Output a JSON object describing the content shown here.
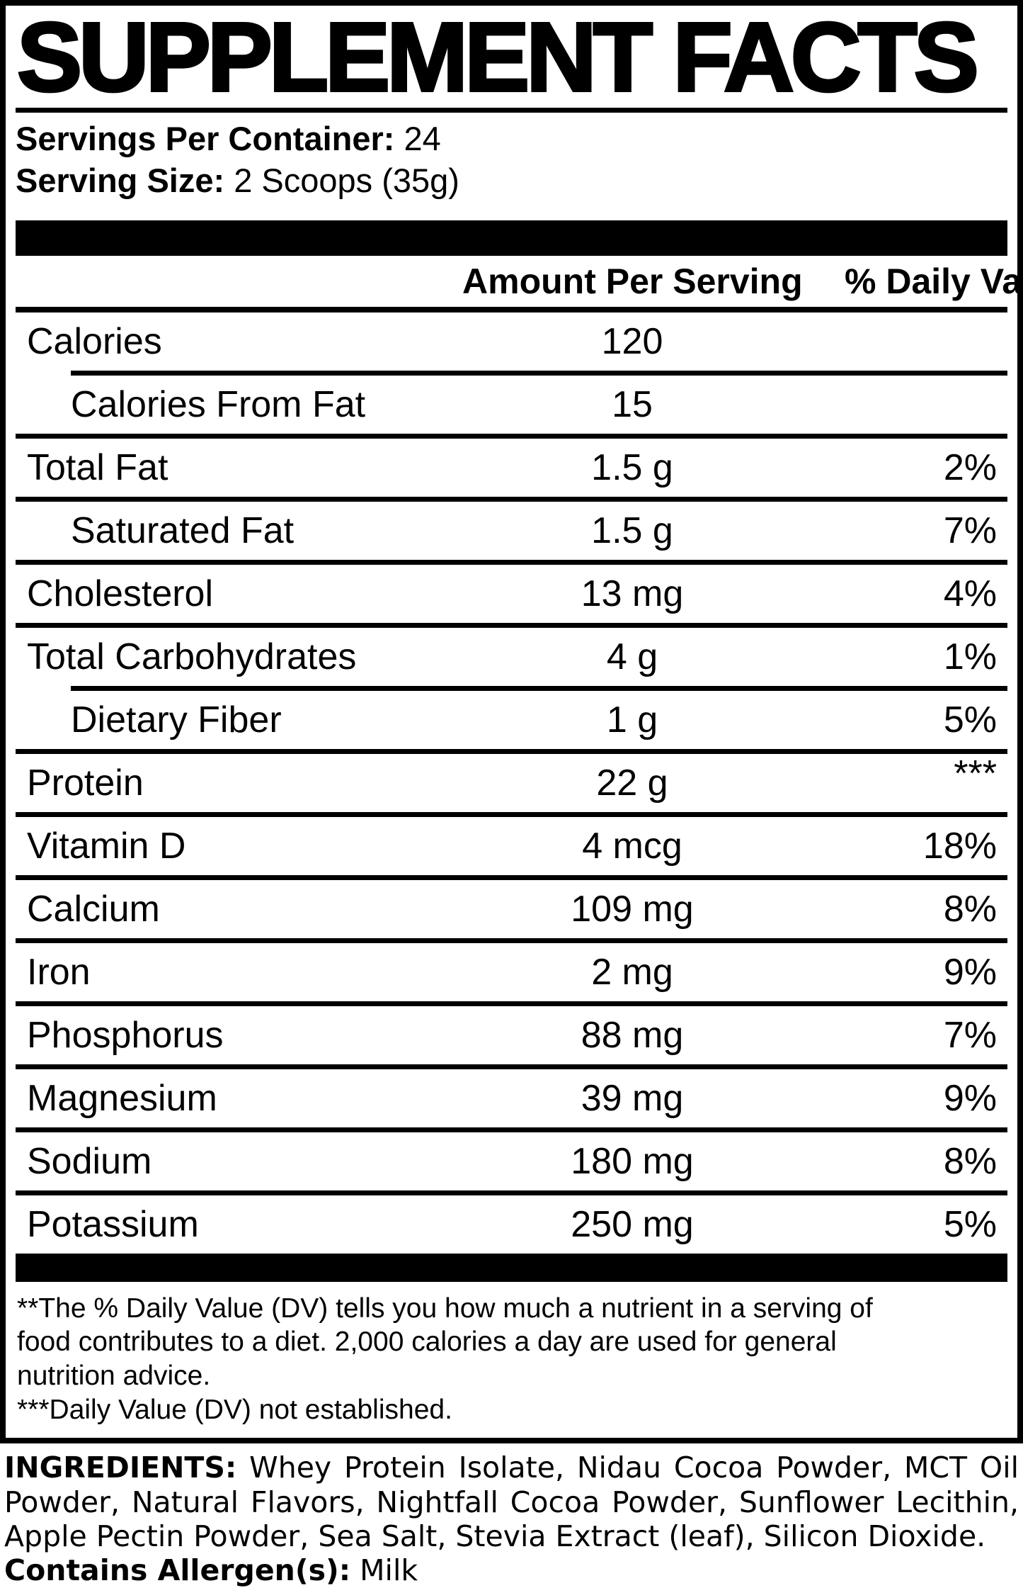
{
  "panel": {
    "title": "SUPPLEMENT FACTS",
    "servings_per_container_label": "Servings Per Container:",
    "servings_per_container_value": "24",
    "serving_size_label": "Serving Size:",
    "serving_size_value": "2 Scoops (35g)",
    "column_headers": {
      "amount": "Amount Per Serving",
      "daily_value": "% Daily Value**"
    },
    "rows": [
      {
        "name": "Calories",
        "amount": "120",
        "dv": "",
        "indent": false,
        "divider_after": "indent"
      },
      {
        "name": "Calories From Fat",
        "amount": "15",
        "dv": "",
        "indent": true,
        "divider_after": "full"
      },
      {
        "name": "Total Fat",
        "amount": "1.5 g",
        "dv": "2%",
        "indent": false,
        "divider_after": "full"
      },
      {
        "name": "Saturated Fat",
        "amount": "1.5 g",
        "dv": "7%",
        "indent": true,
        "divider_after": "full"
      },
      {
        "name": "Cholesterol",
        "amount": "13 mg",
        "dv": "4%",
        "indent": false,
        "divider_after": "full"
      },
      {
        "name": "Total Carbohydrates",
        "amount": "4 g",
        "dv": "1%",
        "indent": false,
        "divider_after": "indent"
      },
      {
        "name": "Dietary Fiber",
        "amount": "1 g",
        "dv": "5%",
        "indent": true,
        "divider_after": "full"
      },
      {
        "name": "Protein",
        "amount": "22 g",
        "dv": "***",
        "indent": false,
        "divider_after": "full",
        "dv_align": "top"
      },
      {
        "name": "Vitamin D",
        "amount": "4 mcg",
        "dv": "18%",
        "indent": false,
        "divider_after": "full"
      },
      {
        "name": "Calcium",
        "amount": "109 mg",
        "dv": "8%",
        "indent": false,
        "divider_after": "full"
      },
      {
        "name": "Iron",
        "amount": "2 mg",
        "dv": "9%",
        "indent": false,
        "divider_after": "full"
      },
      {
        "name": "Phosphorus",
        "amount": "88 mg",
        "dv": "7%",
        "indent": false,
        "divider_after": "full"
      },
      {
        "name": "Magnesium",
        "amount": "39 mg",
        "dv": "9%",
        "indent": false,
        "divider_after": "full"
      },
      {
        "name": "Sodium",
        "amount": "180 mg",
        "dv": "8%",
        "indent": false,
        "divider_after": "full"
      },
      {
        "name": "Potassium",
        "amount": "250 mg",
        "dv": "5%",
        "indent": false,
        "divider_after": "none"
      }
    ],
    "footnote_lines": [
      "**The % Daily Value (DV) tells you how much a nutrient in a serving of",
      "food contributes to a diet. 2,000 calories a day are used for general",
      "nutrition advice.",
      "***Daily Value (DV) not established."
    ]
  },
  "ingredients": {
    "label": "INGREDIENTS:",
    "lines": [
      "Whey Protein Isolate, Nidau Cocoa Powder, MCT Oil",
      "Powder, Natural Flavors, Nightfall Cocoa Powder, Sunflower Lecithin,",
      "Apple Pectin Powder, Sea Salt, Stevia Extract (leaf), Silicon Dioxide."
    ],
    "allergen_label": "Contains Allergen(s):",
    "allergen_value": "Milk"
  },
  "colors": {
    "ink": "#000000",
    "background": "#ffffff"
  }
}
